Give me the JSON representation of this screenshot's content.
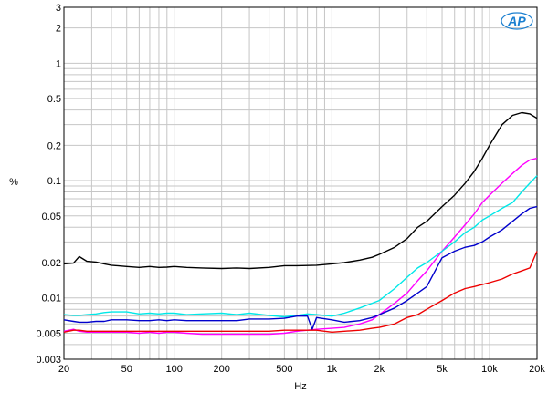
{
  "logo_text": "AP",
  "chart_data": {
    "type": "line",
    "title": "",
    "xlabel": "Hz",
    "ylabel": "%",
    "xscale": "log",
    "yscale": "log",
    "xlim": [
      20,
      20000
    ],
    "ylim": [
      0.003,
      3
    ],
    "grid": true,
    "legend": "none",
    "x_tick_labels": [
      {
        "value": 20,
        "label": "20"
      },
      {
        "value": 50,
        "label": "50"
      },
      {
        "value": 100,
        "label": "100"
      },
      {
        "value": 200,
        "label": "200"
      },
      {
        "value": 500,
        "label": "500"
      },
      {
        "value": 1000,
        "label": "1k"
      },
      {
        "value": 2000,
        "label": "2k"
      },
      {
        "value": 5000,
        "label": "5k"
      },
      {
        "value": 10000,
        "label": "10k"
      },
      {
        "value": 20000,
        "label": "20k"
      }
    ],
    "y_tick_labels": [
      {
        "value": 3,
        "label": "3"
      },
      {
        "value": 2,
        "label": "2"
      },
      {
        "value": 1,
        "label": "1"
      },
      {
        "value": 0.5,
        "label": "0.5"
      },
      {
        "value": 0.2,
        "label": "0.2"
      },
      {
        "value": 0.1,
        "label": "0.1"
      },
      {
        "value": 0.05,
        "label": "0.05"
      },
      {
        "value": 0.02,
        "label": "0.02"
      },
      {
        "value": 0.01,
        "label": "0.01"
      },
      {
        "value": 0.005,
        "label": "0.005"
      },
      {
        "value": 0.003,
        "label": "0.003"
      }
    ],
    "series": [
      {
        "color": "#000000",
        "x": [
          20,
          23,
          25,
          28,
          32,
          36,
          40,
          50,
          60,
          70,
          80,
          90,
          100,
          120,
          150,
          200,
          250,
          300,
          400,
          500,
          600,
          700,
          800,
          1000,
          1200,
          1500,
          1800,
          2000,
          2500,
          3000,
          3500,
          4000,
          5000,
          6000,
          7000,
          8000,
          9000,
          10000,
          12000,
          14000,
          16000,
          18000,
          20000
        ],
        "y": [
          0.0195,
          0.0198,
          0.0225,
          0.0205,
          0.0202,
          0.0195,
          0.019,
          0.0185,
          0.0182,
          0.0185,
          0.0182,
          0.0183,
          0.0185,
          0.0182,
          0.018,
          0.0178,
          0.018,
          0.0178,
          0.0182,
          0.0188,
          0.0188,
          0.0189,
          0.019,
          0.0195,
          0.02,
          0.021,
          0.0222,
          0.0235,
          0.027,
          0.032,
          0.04,
          0.045,
          0.06,
          0.075,
          0.095,
          0.12,
          0.155,
          0.2,
          0.3,
          0.36,
          0.38,
          0.37,
          0.34
        ]
      },
      {
        "color": "#ff00ff",
        "x": [
          20,
          23,
          25,
          28,
          32,
          36,
          40,
          50,
          60,
          70,
          80,
          90,
          100,
          120,
          150,
          200,
          250,
          300,
          400,
          500,
          600,
          700,
          800,
          1000,
          1200,
          1500,
          1800,
          2000,
          2500,
          3000,
          3500,
          4000,
          5000,
          6000,
          7000,
          8000,
          9000,
          10000,
          12000,
          14000,
          16000,
          18000,
          20000
        ],
        "y": [
          0.0052,
          0.0054,
          0.0052,
          0.0051,
          0.0051,
          0.0051,
          0.0051,
          0.0051,
          0.005,
          0.0051,
          0.005,
          0.0051,
          0.0051,
          0.005,
          0.0049,
          0.0049,
          0.0049,
          0.0049,
          0.0049,
          0.005,
          0.0052,
          0.0053,
          0.0054,
          0.0055,
          0.0056,
          0.006,
          0.0065,
          0.0072,
          0.009,
          0.011,
          0.014,
          0.017,
          0.025,
          0.033,
          0.042,
          0.052,
          0.065,
          0.075,
          0.095,
          0.115,
          0.135,
          0.15,
          0.155
        ]
      },
      {
        "color": "#00e8e8",
        "x": [
          20,
          23,
          25,
          28,
          32,
          36,
          40,
          50,
          60,
          70,
          80,
          90,
          100,
          120,
          150,
          200,
          250,
          300,
          400,
          500,
          600,
          700,
          800,
          1000,
          1200,
          1500,
          1800,
          2000,
          2500,
          3000,
          3500,
          4000,
          5000,
          6000,
          7000,
          8000,
          9000,
          10000,
          12000,
          14000,
          16000,
          18000,
          20000
        ],
        "y": [
          0.0072,
          0.0071,
          0.0071,
          0.0072,
          0.0073,
          0.0075,
          0.0076,
          0.0076,
          0.0073,
          0.0074,
          0.0073,
          0.0074,
          0.0074,
          0.0072,
          0.0073,
          0.0074,
          0.0072,
          0.0074,
          0.0071,
          0.0069,
          0.0071,
          0.0073,
          0.0072,
          0.007,
          0.0074,
          0.0082,
          0.009,
          0.0095,
          0.012,
          0.015,
          0.018,
          0.02,
          0.025,
          0.03,
          0.036,
          0.04,
          0.046,
          0.05,
          0.058,
          0.065,
          0.08,
          0.095,
          0.11
        ]
      },
      {
        "color": "#0000cc",
        "x": [
          20,
          23,
          25,
          28,
          32,
          36,
          40,
          50,
          60,
          70,
          80,
          90,
          100,
          120,
          150,
          200,
          250,
          300,
          400,
          500,
          600,
          700,
          750,
          800,
          1000,
          1200,
          1500,
          1800,
          2000,
          2500,
          3000,
          3500,
          4000,
          5000,
          6000,
          7000,
          8000,
          9000,
          10000,
          12000,
          14000,
          16000,
          18000,
          20000
        ],
        "y": [
          0.0065,
          0.0063,
          0.0062,
          0.0062,
          0.0063,
          0.0063,
          0.0065,
          0.0065,
          0.0064,
          0.0064,
          0.0065,
          0.0064,
          0.0065,
          0.0064,
          0.0064,
          0.0064,
          0.0064,
          0.0066,
          0.0066,
          0.0067,
          0.007,
          0.007,
          0.0054,
          0.0068,
          0.0065,
          0.0062,
          0.0064,
          0.0068,
          0.0072,
          0.0082,
          0.0095,
          0.011,
          0.0125,
          0.022,
          0.025,
          0.027,
          0.028,
          0.03,
          0.033,
          0.038,
          0.045,
          0.052,
          0.058,
          0.06
        ]
      },
      {
        "color": "#ee0000",
        "x": [
          20,
          23,
          25,
          28,
          32,
          36,
          40,
          50,
          60,
          70,
          80,
          90,
          100,
          120,
          150,
          200,
          250,
          300,
          400,
          500,
          600,
          700,
          800,
          1000,
          1200,
          1500,
          1800,
          2000,
          2500,
          3000,
          3500,
          4000,
          5000,
          6000,
          7000,
          8000,
          9000,
          10000,
          12000,
          14000,
          16000,
          18000,
          20000
        ],
        "y": [
          0.0051,
          0.0053,
          0.0053,
          0.0052,
          0.0052,
          0.0052,
          0.0052,
          0.0052,
          0.0052,
          0.0052,
          0.0052,
          0.0052,
          0.0052,
          0.0052,
          0.0052,
          0.0052,
          0.0052,
          0.0052,
          0.0052,
          0.0053,
          0.0053,
          0.0053,
          0.0053,
          0.0051,
          0.0052,
          0.0053,
          0.0055,
          0.0056,
          0.006,
          0.0068,
          0.0072,
          0.008,
          0.0095,
          0.011,
          0.012,
          0.0125,
          0.013,
          0.0135,
          0.0145,
          0.016,
          0.017,
          0.018,
          0.025
        ]
      }
    ]
  }
}
